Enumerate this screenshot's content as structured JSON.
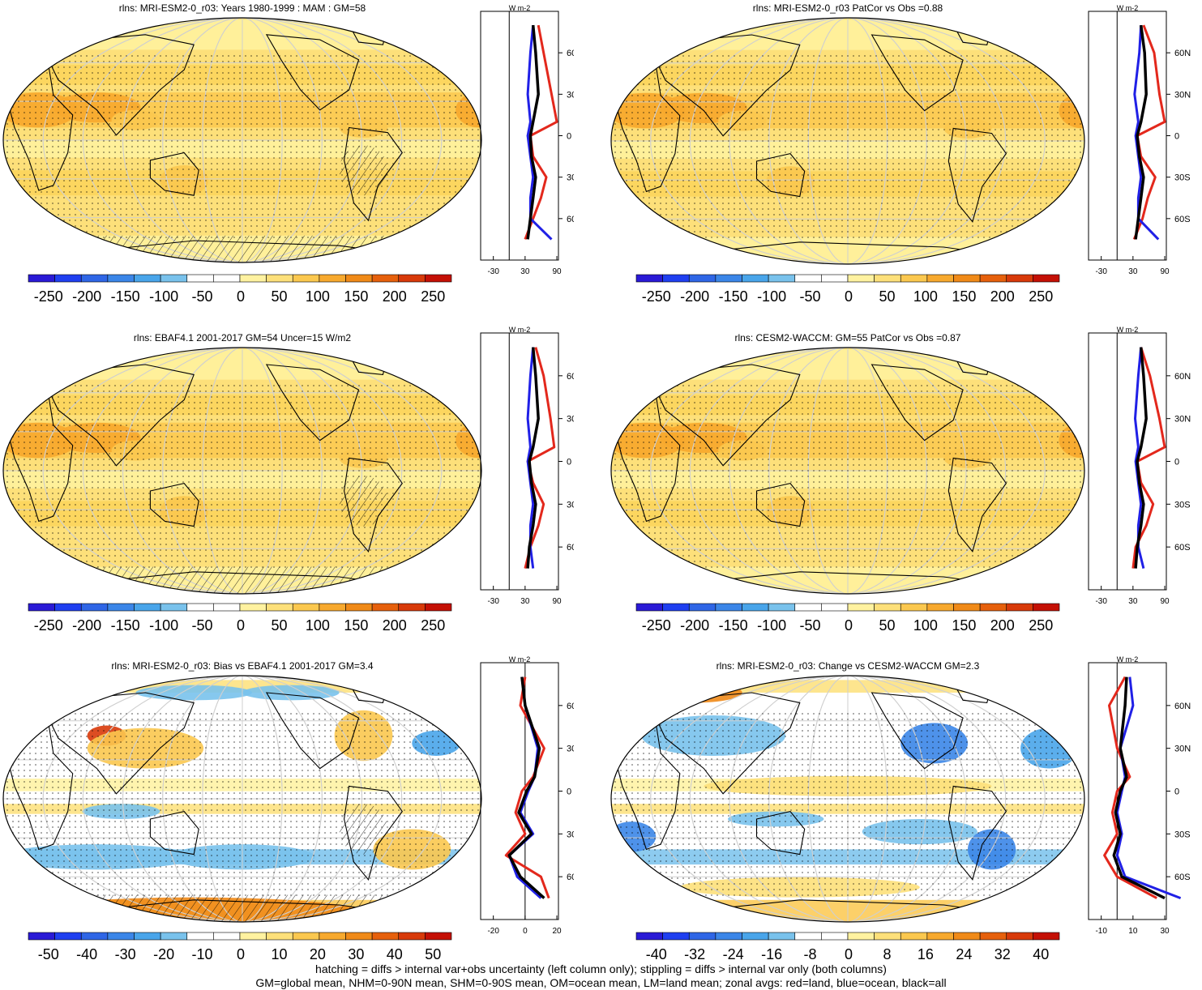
{
  "panels": [
    {
      "title": "rlns: MRI-ESM2-0_r03: Years 1980-1999 : MAM : GM=58",
      "style": "warm",
      "hatch": true,
      "stipple": true,
      "colorbar": {
        "ticks": [
          "-250",
          "-200",
          "-150",
          "-100",
          "-50",
          "0",
          "50",
          "100",
          "150",
          "200",
          "250"
        ]
      },
      "zonal": {
        "unit": "W m-2",
        "xticks": [
          "-30",
          "30",
          "90"
        ],
        "yticks": [
          "60N",
          "30N",
          "0",
          "30S",
          "60S"
        ]
      }
    },
    {
      "title": "rlns: MRI-ESM2-0_r03 PatCor vs Obs =0.88",
      "style": "warm",
      "hatch": false,
      "stipple": true,
      "colorbar": {
        "ticks": [
          "-250",
          "-200",
          "-150",
          "-100",
          "-50",
          "0",
          "50",
          "100",
          "150",
          "200",
          "250"
        ]
      },
      "zonal": {
        "unit": "W m-2",
        "xticks": [
          "-30",
          "30",
          "90"
        ],
        "yticks": [
          "60N",
          "30N",
          "0",
          "30S",
          "60S"
        ]
      }
    },
    {
      "title": "rlns: EBAF4.1 2001-2017 GM=54 Uncer=15 W/m2",
      "style": "warm",
      "hatch": true,
      "stipple": true,
      "colorbar": {
        "ticks": [
          "-250",
          "-200",
          "-150",
          "-100",
          "-50",
          "0",
          "50",
          "100",
          "150",
          "200",
          "250"
        ]
      },
      "zonal": {
        "unit": "W m-2",
        "xticks": [
          "-30",
          "30",
          "90"
        ],
        "yticks": [
          "60N",
          "30N",
          "0",
          "30S",
          "60S"
        ]
      }
    },
    {
      "title": "rlns: CESM2-WACCM: GM=55 PatCor vs Obs =0.87",
      "style": "warm",
      "hatch": false,
      "stipple": true,
      "colorbar": {
        "ticks": [
          "-250",
          "-200",
          "-150",
          "-100",
          "-50",
          "0",
          "50",
          "100",
          "150",
          "200",
          "250"
        ]
      },
      "zonal": {
        "unit": "W m-2",
        "xticks": [
          "-30",
          "30",
          "90"
        ],
        "yticks": [
          "60N",
          "30N",
          "0",
          "30S",
          "60S"
        ]
      }
    },
    {
      "title": "rlns: MRI-ESM2-0_r03: Bias vs EBAF4.1 2001-2017 GM=3.4",
      "style": "diff",
      "hatch": true,
      "stipple": true,
      "colorbar": {
        "ticks": [
          "-50",
          "-40",
          "-30",
          "-20",
          "-10",
          "0",
          "10",
          "20",
          "30",
          "40",
          "50"
        ]
      },
      "zonal": {
        "unit": "W m-2",
        "xticks": [
          "-20",
          "0",
          "20"
        ],
        "yticks": [
          "60N",
          "30N",
          "0",
          "30S",
          "60S"
        ]
      }
    },
    {
      "title": "rlns: MRI-ESM2-0_r03: Change vs CESM2-WACCM GM=2.3",
      "style": "diff",
      "hatch": false,
      "stipple": true,
      "colorbar": {
        "ticks": [
          "-40",
          "-32",
          "-24",
          "-16",
          "-8",
          "0",
          "8",
          "16",
          "24",
          "32",
          "40"
        ]
      },
      "zonal": {
        "unit": "W m-2",
        "xticks": [
          "-10",
          "10",
          "30"
        ],
        "yticks": [
          "60N",
          "30N",
          "0",
          "30S",
          "60S"
        ]
      }
    }
  ],
  "footer": {
    "line1": "hatching = diffs > internal var+obs uncertainty (left column only); stippling = diffs > internal var only (both columns)",
    "line2": "GM=global mean, NHM=0-90N mean, SHM=0-90S mean, OM=ocean mean, LM=land mean; zonal avgs: red=land, blue=ocean, black=all"
  },
  "colors": {
    "colorbar": [
      "#2a1ad6",
      "#1f3ff0",
      "#2f66e6",
      "#3b86e8",
      "#49a5ea",
      "#79c2ec",
      "#ffffff",
      "#ffffff",
      "#fff2a0",
      "#fde07a",
      "#fbc84f",
      "#f7a92e",
      "#f08a18",
      "#e6600c",
      "#d83a0a",
      "#c41005"
    ],
    "land": "#e3281c",
    "ocean": "#2020e6",
    "all": "#000000"
  },
  "chart_data": [
    {
      "type": "heatmap",
      "title": "rlns: MRI-ESM2-0_r03: Years 1980-1999 : MAM : GM=58",
      "ylabel": "W m-2",
      "zonal_lat": [
        80,
        60,
        30,
        10,
        0,
        -15,
        -30,
        -45,
        -60,
        -75
      ],
      "zonal_land": [
        55,
        65,
        80,
        90,
        40,
        45,
        70,
        60,
        45,
        30
      ],
      "zonal_ocean": [
        45,
        40,
        35,
        40,
        35,
        40,
        45,
        40,
        40,
        80
      ],
      "zonal_all": [
        45,
        50,
        55,
        45,
        40,
        42,
        50,
        45,
        40,
        35
      ]
    },
    {
      "type": "heatmap",
      "title": "rlns: MRI-ESM2-0_r03 PatCor vs Obs =0.88",
      "ylabel": "W m-2",
      "zonal_lat": [
        80,
        60,
        30,
        10,
        0,
        -15,
        -30,
        -45,
        -60,
        -75
      ],
      "zonal_land": [
        50,
        70,
        80,
        90,
        38,
        45,
        72,
        58,
        48,
        32
      ],
      "zonal_ocean": [
        45,
        42,
        33,
        40,
        35,
        40,
        45,
        40,
        40,
        78
      ],
      "zonal_all": [
        45,
        52,
        55,
        45,
        38,
        42,
        50,
        45,
        40,
        35
      ]
    },
    {
      "type": "heatmap",
      "title": "rlns: EBAF4.1 2001-2017 GM=54 Uncer=15 W/m2",
      "ylabel": "W m-2",
      "zonal_lat": [
        80,
        60,
        30,
        10,
        0,
        -15,
        -30,
        -45,
        -60,
        -75
      ],
      "zonal_land": [
        50,
        65,
        78,
        85,
        35,
        45,
        65,
        55,
        40,
        30
      ],
      "zonal_ocean": [
        45,
        40,
        35,
        40,
        35,
        40,
        45,
        40,
        40,
        45
      ],
      "zonal_all": [
        45,
        50,
        55,
        45,
        38,
        42,
        50,
        45,
        38,
        35
      ]
    },
    {
      "type": "heatmap",
      "title": "rlns: CESM2-WACCM: GM=55 PatCor vs Obs =0.87",
      "ylabel": "W m-2",
      "zonal_lat": [
        80,
        60,
        30,
        10,
        0,
        -15,
        -30,
        -45,
        -60,
        -75
      ],
      "zonal_land": [
        45,
        62,
        80,
        90,
        38,
        45,
        68,
        55,
        35,
        30
      ],
      "zonal_ocean": [
        45,
        40,
        34,
        40,
        35,
        40,
        45,
        40,
        40,
        50
      ],
      "zonal_all": [
        45,
        50,
        55,
        45,
        38,
        42,
        50,
        45,
        38,
        35
      ]
    },
    {
      "type": "heatmap",
      "title": "rlns: MRI-ESM2-0_r03: Bias vs EBAF4.1 2001-2017 GM=3.4",
      "ylabel": "W m-2",
      "zonal_lat": [
        80,
        60,
        30,
        10,
        0,
        -15,
        -30,
        -45,
        -60,
        -75
      ],
      "zonal_land": [
        0,
        -3,
        12,
        5,
        -2,
        -6,
        0,
        -12,
        10,
        15
      ],
      "zonal_ocean": [
        -2,
        0,
        8,
        6,
        2,
        -3,
        5,
        -10,
        -5,
        10
      ],
      "zonal_all": [
        -2,
        0,
        9,
        6,
        1,
        -4,
        4,
        -10,
        -3,
        12
      ]
    },
    {
      "type": "heatmap",
      "title": "rlns: MRI-ESM2-0_r03: Change vs CESM2-WACCM GM=2.3",
      "ylabel": "W m-2",
      "zonal_lat": [
        80,
        60,
        30,
        10,
        0,
        -15,
        -30,
        -45,
        -60,
        -75
      ],
      "zonal_land": [
        5,
        -5,
        0,
        8,
        0,
        -3,
        0,
        -8,
        0,
        25
      ],
      "zonal_ocean": [
        8,
        10,
        2,
        5,
        3,
        0,
        3,
        0,
        5,
        40
      ],
      "zonal_all": [
        6,
        5,
        2,
        6,
        2,
        -1,
        2,
        -2,
        3,
        30
      ]
    }
  ]
}
